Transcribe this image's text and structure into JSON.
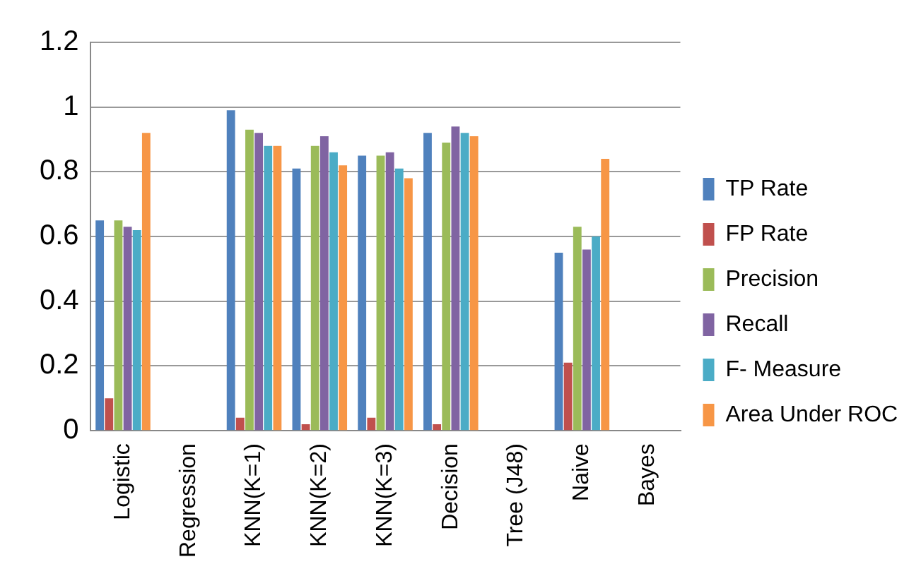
{
  "chart_data": {
    "type": "bar",
    "categories": [
      "Logistic",
      "Regression",
      "KNN(K=1)",
      "KNN(K=2)",
      "KNN(K=3)",
      "Decision",
      "Tree (J48)",
      "Naive",
      "Bayes"
    ],
    "series": [
      {
        "name": "TP Rate",
        "color": "#4f81bd",
        "values": [
          0.65,
          null,
          0.99,
          0.81,
          0.85,
          0.92,
          null,
          0.55,
          null
        ]
      },
      {
        "name": "FP Rate",
        "color": "#c0504d",
        "values": [
          0.1,
          null,
          0.04,
          0.02,
          0.04,
          0.02,
          null,
          0.21,
          null
        ]
      },
      {
        "name": "Precision",
        "color": "#9bbb59",
        "values": [
          0.65,
          null,
          0.93,
          0.88,
          0.85,
          0.89,
          null,
          0.63,
          null
        ]
      },
      {
        "name": "Recall",
        "color": "#8064a2",
        "values": [
          0.63,
          null,
          0.92,
          0.91,
          0.86,
          0.94,
          null,
          0.56,
          null
        ]
      },
      {
        "name": "F- Measure",
        "color": "#4bacc6",
        "values": [
          0.62,
          null,
          0.88,
          0.86,
          0.81,
          0.92,
          null,
          0.6,
          null
        ]
      },
      {
        "name": "Area Under ROC",
        "color": "#f79646",
        "values": [
          0.92,
          null,
          0.88,
          0.82,
          0.78,
          0.91,
          null,
          0.84,
          null
        ]
      }
    ],
    "ylim": [
      0,
      1.2
    ],
    "yticks": [
      0,
      0.2,
      0.4,
      0.6,
      0.8,
      1,
      1.2
    ],
    "grid": "y",
    "legend": "right"
  }
}
